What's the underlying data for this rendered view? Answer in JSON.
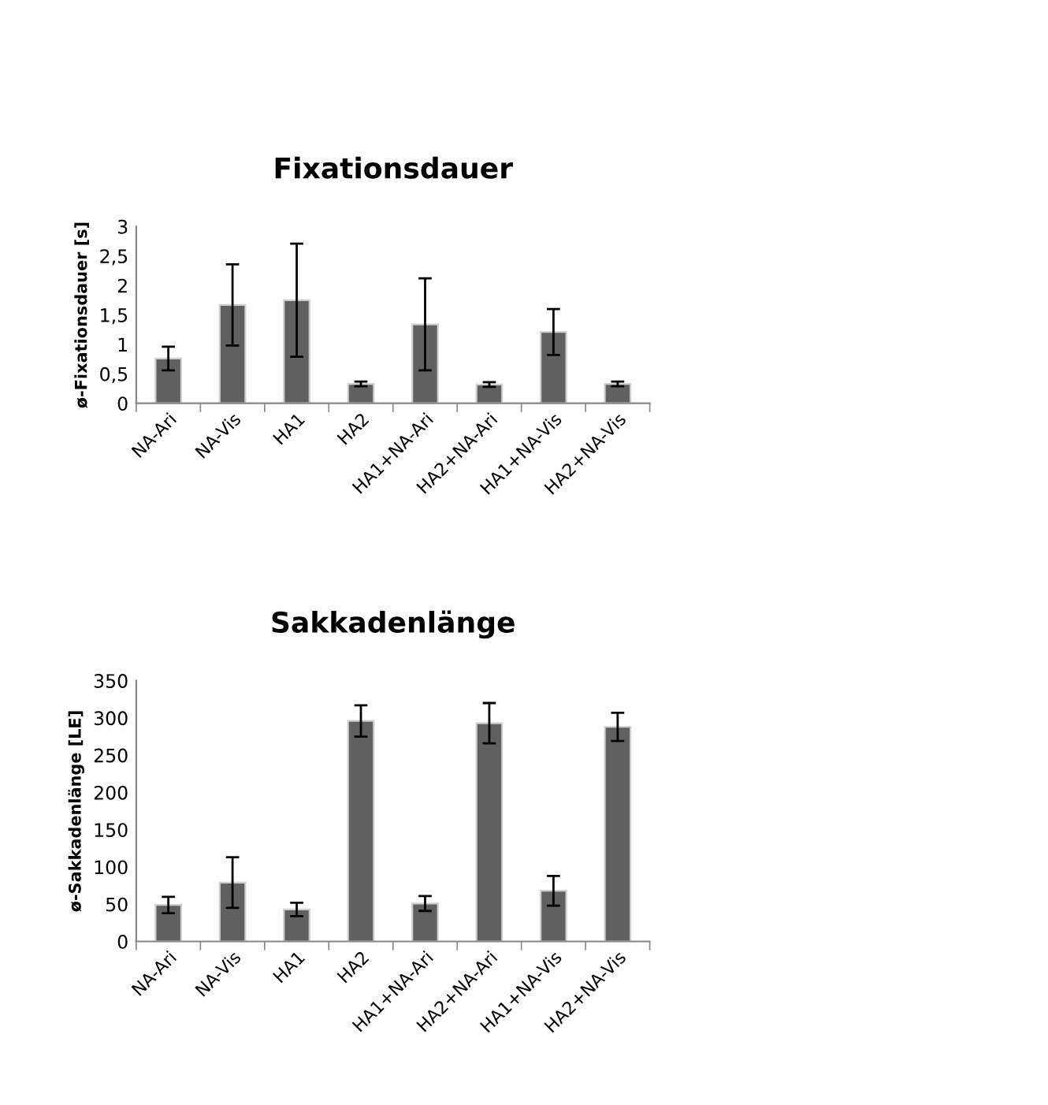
{
  "chart_data": [
    {
      "type": "bar",
      "title": "Fixationsdauer",
      "ylabel": "ø-Fixationsdauer [s]",
      "categories": [
        "NA-Ari",
        "NA-Vis",
        "HA1",
        "HA2",
        "HA1+NA-Ari",
        "HA2+NA-Ari",
        "HA1+NA-Vis",
        "HA2+NA-Vis"
      ],
      "values": [
        0.76,
        1.67,
        1.75,
        0.33,
        1.34,
        0.32,
        1.21,
        0.33
      ],
      "errors": [
        0.2,
        0.69,
        0.96,
        0.04,
        0.78,
        0.04,
        0.39,
        0.04
      ],
      "color": "#606060",
      "ylim": [
        0,
        3
      ],
      "yticks": [
        0,
        {
          "value": 0.5,
          "label": "0,5"
        },
        1,
        {
          "value": 1.5,
          "label": "1,5"
        },
        2,
        {
          "value": 2.5,
          "label": "2,5"
        },
        3
      ],
      "grid": false,
      "legend": false
    },
    {
      "type": "bar",
      "title": "Sakkadenlänge",
      "ylabel": "ø-Sakkadenlänge [LE]",
      "categories": [
        "NA-Ari",
        "NA-Vis",
        "HA1",
        "HA2",
        "HA1+NA-Ari",
        "HA2+NA-Ari",
        "HA1+NA-Vis",
        "HA2+NA-Vis"
      ],
      "values": [
        49,
        79,
        43,
        296,
        51,
        293,
        68,
        288
      ],
      "errors": [
        11,
        34,
        9,
        21,
        10,
        27,
        20,
        19
      ],
      "color": "#606060",
      "ylim": [
        0,
        350
      ],
      "yticks": [
        0,
        50,
        100,
        150,
        200,
        250,
        300,
        350
      ],
      "grid": false,
      "legend": false
    }
  ]
}
